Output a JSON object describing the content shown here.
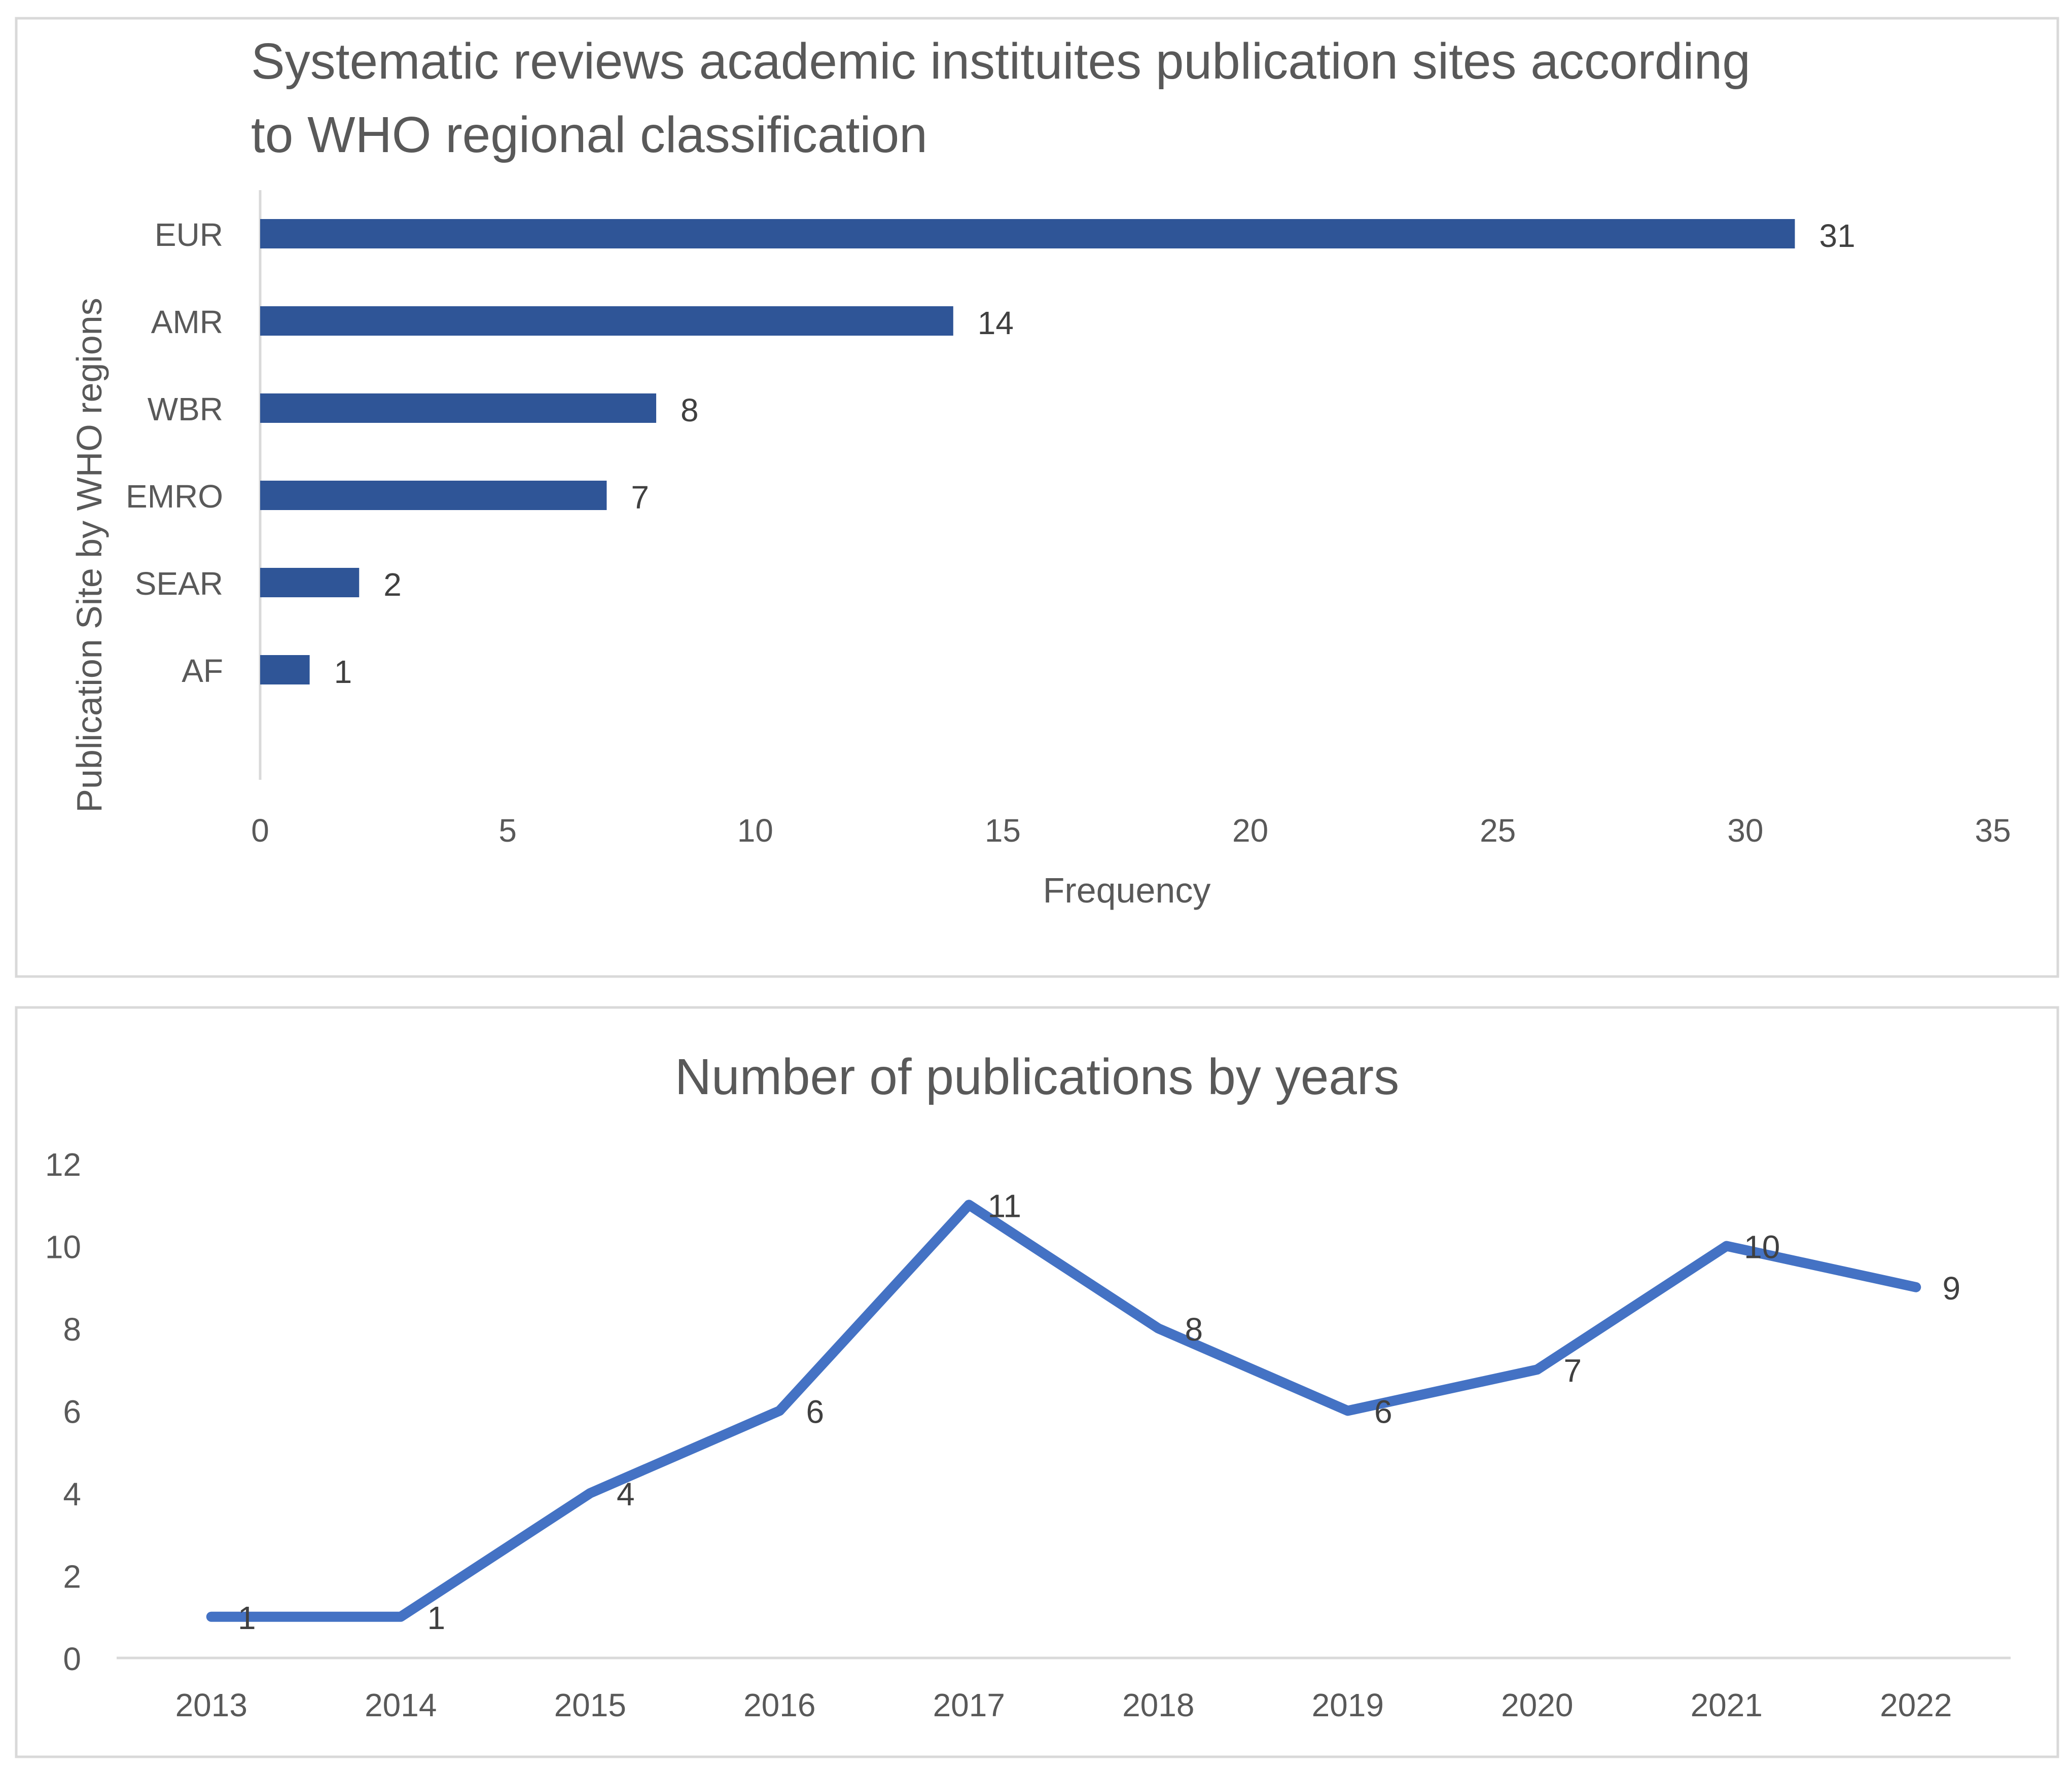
{
  "chart_data": [
    {
      "type": "bar",
      "orientation": "horizontal",
      "title": "Systematic reviews academic instituites publication sites according to WHO regional classification",
      "title_lines": [
        "Systematic reviews academic instituites publication sites according",
        "to WHO regional classification"
      ],
      "xlabel": "Frequency",
      "ylabel": "Publication Site by WHO regions",
      "categories": [
        "EUR",
        "AMR",
        "WBR",
        "EMRO",
        "SEAR",
        "AF"
      ],
      "values": [
        31,
        14,
        8,
        7,
        2,
        1
      ],
      "data_labels": [
        "31",
        "14",
        "8",
        "7",
        "2",
        "1"
      ],
      "xlim": [
        0,
        35
      ],
      "xticks": [
        "0",
        "5",
        "10",
        "15",
        "20",
        "25",
        "30",
        "35"
      ],
      "grid": false,
      "bar_color": "#2F5597"
    },
    {
      "type": "line",
      "title": "Number of publications by years",
      "xlabel": "",
      "ylabel": "",
      "categories": [
        "2013",
        "2014",
        "2015",
        "2016",
        "2017",
        "2018",
        "2019",
        "2020",
        "2021",
        "2022"
      ],
      "values": [
        1,
        1,
        4,
        6,
        11,
        8,
        6,
        7,
        10,
        9
      ],
      "data_labels": [
        "1",
        "1",
        "4",
        "6",
        "11",
        "8",
        "6",
        "7",
        "10",
        "9"
      ],
      "ylim": [
        0,
        12
      ],
      "yticks": [
        "0",
        "2",
        "4",
        "6",
        "8",
        "10",
        "12"
      ],
      "grid": false,
      "line_color": "#4472C4"
    }
  ]
}
